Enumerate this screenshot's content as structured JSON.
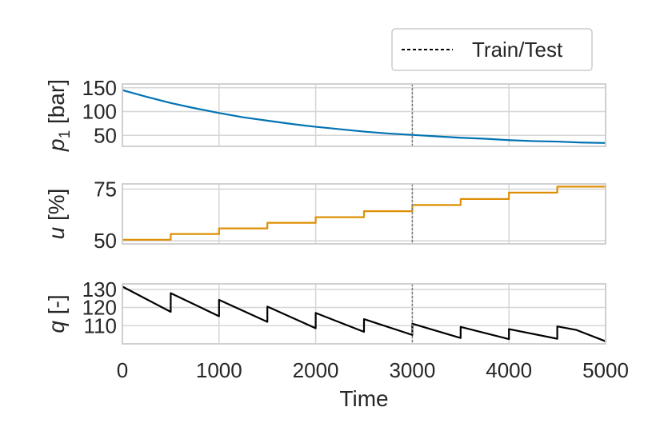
{
  "chart_data": {
    "type": "line",
    "xlabel": "Time",
    "xlim": [
      0,
      5000
    ],
    "x_ticks": [
      0,
      1000,
      2000,
      3000,
      4000,
      5000
    ],
    "grid": true,
    "legend": {
      "label": "Train/Test",
      "placement": "top-right"
    },
    "train_test_split_x": 3000,
    "panels": [
      {
        "id": "p1",
        "ylabel_main": "p",
        "ylabel_sub": "1",
        "ylabel_unit": " [bar]",
        "ylim": [
          27,
          158
        ],
        "y_ticks": [
          50,
          100,
          150
        ],
        "color": "#0173b2",
        "series": [
          {
            "x": [
              0,
              250,
              500,
              750,
              1000,
              1250,
              1500,
              1750,
              2000,
              2250,
              2500,
              2750,
              3000,
              3250,
              3500,
              3750,
              4000,
              4250,
              4500,
              4750,
              5000
            ],
            "y": [
              145,
              131,
              118,
              107,
              97,
              88,
              81,
              74,
              68,
              63,
              58,
              54,
              51,
              48,
              45,
              43,
              40,
              38,
              37,
              35,
              34
            ]
          }
        ]
      },
      {
        "id": "u",
        "ylabel_main": "u",
        "ylabel_unit": " [%]",
        "ylim": [
          48.5,
          77.5
        ],
        "y_ticks": [
          50,
          75
        ],
        "color": "#de8f05",
        "series": [
          {
            "step_starts": [
              0,
              500,
              1000,
              1500,
              2000,
              2500,
              3000,
              3500,
              4000,
              4500,
              5000
            ],
            "step_values": [
              50.5,
              53.3,
              56.0,
              58.7,
              61.4,
              64.3,
              67.3,
              70.2,
              73.3,
              76.2,
              76.2
            ]
          }
        ]
      },
      {
        "id": "q",
        "ylabel_main": "q",
        "ylabel_unit": " [-]",
        "ylim": [
          100,
          133
        ],
        "y_ticks": [
          110,
          120,
          130
        ],
        "color": "#000000",
        "series": [
          {
            "x": [
              0,
              500,
              500,
              1000,
              1000,
              1500,
              1500,
              2000,
              2000,
              2500,
              2500,
              3000,
              3000,
              3500,
              3500,
              4000,
              4000,
              4500,
              4500,
              4700,
              5000
            ],
            "y": [
              131.5,
              117.6,
              127.9,
              115.2,
              124.2,
              112.1,
              120.5,
              108.6,
              117.0,
              106.6,
              113.6,
              104.9,
              111.1,
              103.2,
              109.3,
              102.6,
              108.1,
              102.8,
              109.6,
              107.6,
              101.4
            ]
          }
        ]
      }
    ]
  }
}
